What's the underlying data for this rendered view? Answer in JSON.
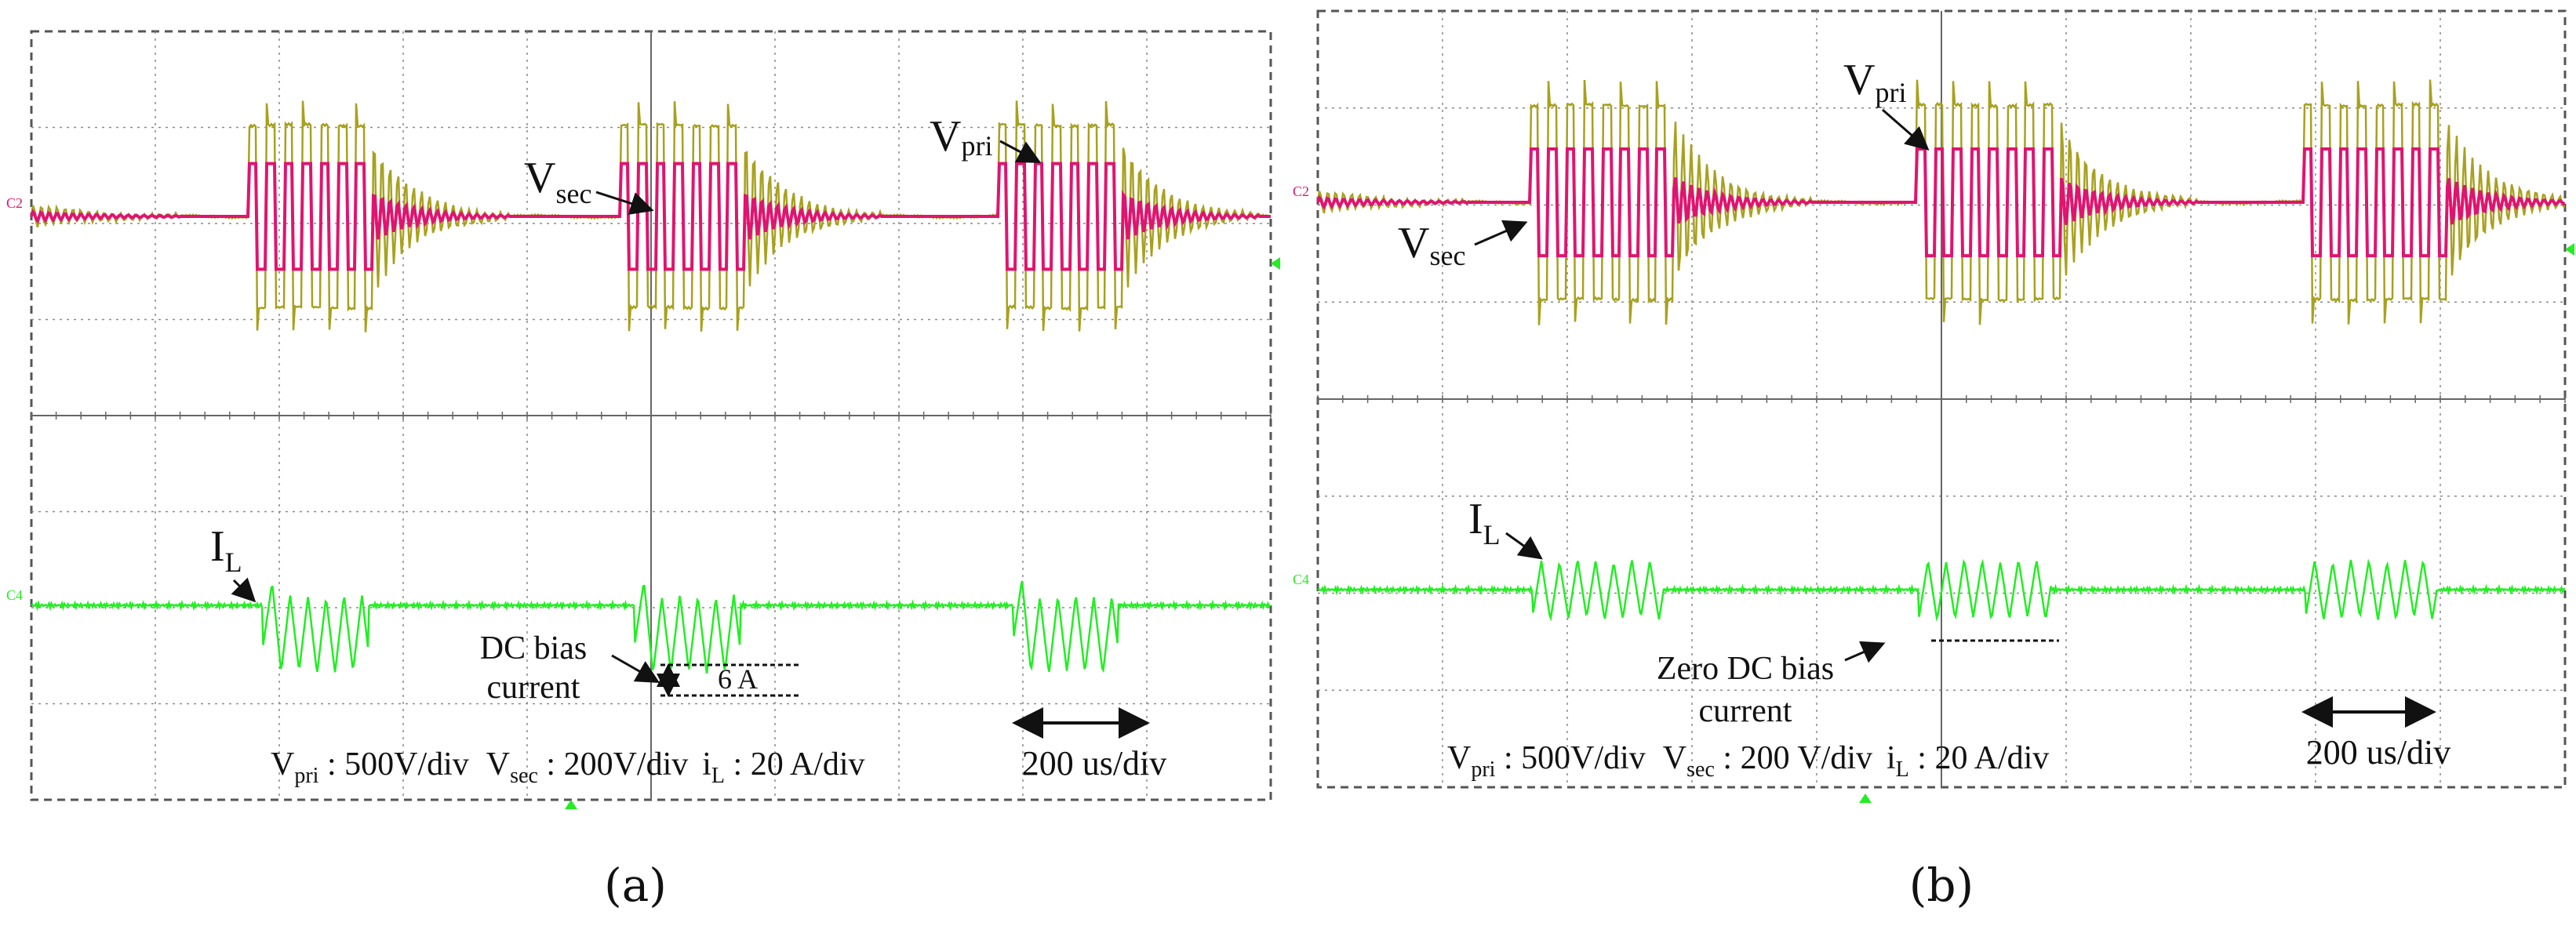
{
  "colors": {
    "vpri": "#a8a11e",
    "vsec": "#e0146e",
    "il": "#22ee22",
    "grid": "#8a8a8a",
    "annotation": "#111111"
  },
  "chart_data": [
    {
      "type": "line",
      "panel": "a",
      "caption": "(a)",
      "channel_labels": [
        "C2",
        "C4"
      ],
      "x_divisions": 10,
      "y_divisions": 8,
      "time_per_div_us": 200,
      "burst_start_div": [
        1.75,
        4.75,
        7.8
      ],
      "burst_length_div": 1.0,
      "series": [
        {
          "name": "Vpri",
          "scale": "500V/div",
          "burst_amplitude_div": 0.95,
          "ringing_decay_div": 1.1
        },
        {
          "name": "Vsec",
          "scale": "200V/div",
          "burst_amplitude_div": 0.55
        },
        {
          "name": "iL",
          "scale": "20 A/div",
          "burst_amplitude_div": 0.4,
          "dc_bias_div": -0.3,
          "dc_bias_A": 6
        }
      ],
      "annotations": [
        {
          "id": "vsec",
          "text": "V",
          "sub": "sec"
        },
        {
          "id": "vpri",
          "text": "V",
          "sub": "pri"
        },
        {
          "id": "il",
          "text": "I",
          "sub": "L"
        },
        {
          "id": "dc_bias_1",
          "text": "DC bias"
        },
        {
          "id": "dc_bias_2",
          "text": "current"
        },
        {
          "id": "six_a",
          "text": "6 A"
        },
        {
          "id": "timebase",
          "text": "200 us/div"
        }
      ],
      "scale_line": {
        "vpri_label": "V",
        "vpri_sub": "pri",
        "vpri_value": " : 500V/div",
        "vsec_label": "V",
        "vsec_sub": "sec",
        "vsec_value": " : 200V/div",
        "il_label": "i",
        "il_sub": "L",
        "il_value": " : 20 A/div"
      }
    },
    {
      "type": "line",
      "panel": "b",
      "caption": "(b)",
      "channel_labels": [
        "C2",
        "C4"
      ],
      "x_divisions": 10,
      "y_divisions": 8,
      "time_per_div_us": 200,
      "burst_start_div": [
        1.7,
        4.8,
        7.9
      ],
      "burst_length_div": 1.15,
      "series": [
        {
          "name": "Vpri",
          "scale": "500V/div",
          "burst_amplitude_div": 1.0,
          "ringing_decay_div": 1.1
        },
        {
          "name": "Vsec",
          "scale": "200 V/div",
          "burst_amplitude_div": 0.55
        },
        {
          "name": "iL",
          "scale": "20 A/div",
          "burst_amplitude_div": 0.3,
          "dc_bias_div": 0,
          "dc_bias_A": 0
        }
      ],
      "annotations": [
        {
          "id": "vpri",
          "text": "V",
          "sub": "pri"
        },
        {
          "id": "vsec",
          "text": "V",
          "sub": "sec"
        },
        {
          "id": "il",
          "text": "I",
          "sub": "L"
        },
        {
          "id": "zero_dc_1",
          "text": "Zero DC bias"
        },
        {
          "id": "zero_dc_2",
          "text": "current"
        },
        {
          "id": "timebase",
          "text": "200 us/div"
        }
      ],
      "scale_line": {
        "vpri_label": "V",
        "vpri_sub": "pri",
        "vpri_value": " : 500V/div",
        "vsec_label": "V",
        "vsec_sub": "sec",
        "vsec_value": " : 200 V/div",
        "il_label": "i",
        "il_sub": "L",
        "il_value": " : 20 A/div"
      }
    }
  ]
}
